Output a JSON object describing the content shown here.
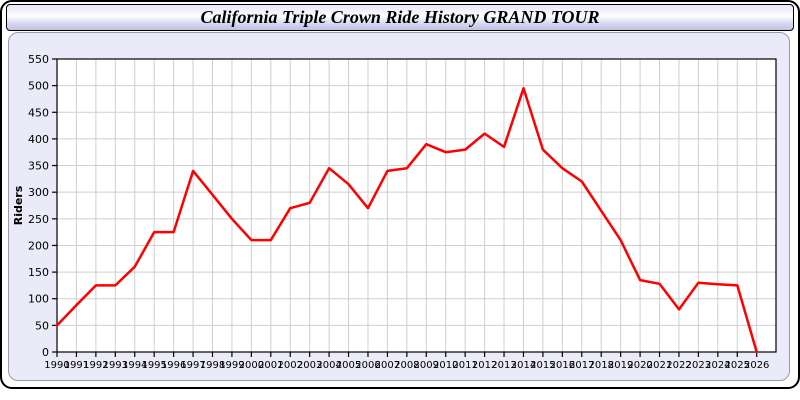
{
  "window": {
    "title": "California Triple Crown Ride History GRAND TOUR"
  },
  "colors": {
    "line": "#FF0000",
    "panel_background": "#EAEAF8",
    "plot_background": "#FFFFFF",
    "gridline": "#CFCFCF",
    "axis": "#000000",
    "header_gradient_top": "#E6E6F8",
    "header_gradient_bottom": "#BFBFE2"
  },
  "chart_data": {
    "type": "line",
    "title": "California Triple Crown Ride History GRAND TOUR",
    "xlabel": "",
    "ylabel": "Riders",
    "categories": [
      "1990",
      "1991",
      "1992",
      "1993",
      "1994",
      "1995",
      "1996",
      "1997",
      "1998",
      "1999",
      "2000",
      "2001",
      "2002",
      "2003",
      "2004",
      "2005",
      "2006",
      "2007",
      "2008",
      "2009",
      "2010",
      "2011",
      "2012",
      "2013",
      "2014",
      "2015",
      "2016",
      "2017",
      "2018",
      "2019",
      "2020",
      "2021",
      "2022",
      "2023",
      "2024",
      "2025",
      "2026"
    ],
    "series": [
      {
        "name": "Riders",
        "color": "#FF0000",
        "values": [
          50,
          88,
          125,
          125,
          160,
          225,
          225,
          340,
          295,
          250,
          210,
          210,
          270,
          280,
          345,
          315,
          270,
          340,
          345,
          390,
          375,
          380,
          410,
          385,
          495,
          380,
          345,
          320,
          265,
          210,
          135,
          128,
          80,
          130,
          127,
          125,
          0
        ]
      }
    ],
    "ylim": [
      0,
      550
    ],
    "ytick_step": 50,
    "yticks": [
      0,
      50,
      100,
      150,
      200,
      250,
      300,
      350,
      400,
      450,
      500,
      550
    ],
    "grid": true,
    "legend_position": "none"
  }
}
